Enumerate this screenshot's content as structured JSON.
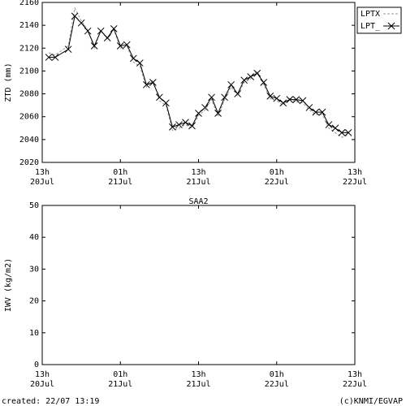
{
  "chart_data": [
    {
      "type": "line",
      "ylabel": "ZTD (mm)",
      "xlim": [
        0,
        48
      ],
      "ylim": [
        2020,
        2160
      ],
      "yticks": [
        2020,
        2040,
        2060,
        2080,
        2100,
        2120,
        2140,
        2160
      ],
      "xticks": [
        {
          "value": 0,
          "label": "13h",
          "date": "20Jul"
        },
        {
          "value": 12,
          "label": "01h",
          "date": "21Jul"
        },
        {
          "value": 24,
          "label": "13h",
          "date": "21Jul"
        },
        {
          "value": 36,
          "label": "01h",
          "date": "22Jul"
        },
        {
          "value": 48,
          "label": "13h",
          "date": "22Jul"
        }
      ],
      "legend": "outside-right",
      "x": [
        1,
        2,
        4,
        5,
        6,
        7,
        8,
        9,
        10,
        11,
        12,
        13,
        14,
        15,
        16,
        17,
        18,
        19,
        20,
        21,
        22,
        23,
        24,
        25,
        26,
        27,
        28,
        29,
        30,
        31,
        32,
        33,
        34,
        35,
        36,
        37,
        38,
        39,
        40,
        41,
        42,
        43,
        44,
        45,
        46,
        47
      ],
      "series": [
        {
          "name": "LPTX",
          "color": "#999999",
          "dash": true,
          "values": [
            2116,
            2114,
            2122,
            2155,
            2144,
            2136,
            2120,
            2136,
            2128,
            2136,
            2120,
            2122,
            2108,
            2104,
            2086,
            2092,
            2074,
            2070,
            2048,
            2050,
            2053,
            2050,
            2061,
            2066,
            2075,
            2060,
            2075,
            2086,
            2078,
            2090,
            2093,
            2100,
            2088,
            2076,
            2074,
            2070,
            2076,
            2073,
            2072,
            2066,
            2062,
            2062,
            2050,
            2046,
            2042,
            2044
          ]
        },
        {
          "name": "LPT_",
          "color": "#000000",
          "marker": "x",
          "values": [
            2112,
            2112,
            2119,
            2148,
            2142,
            2135,
            2122,
            2135,
            2129,
            2137,
            2122,
            2123,
            2111,
            2107,
            2088,
            2090,
            2077,
            2072,
            2051,
            2053,
            2055,
            2052,
            2063,
            2068,
            2077,
            2063,
            2077,
            2088,
            2080,
            2092,
            2095,
            2098,
            2090,
            2078,
            2076,
            2072,
            2075,
            2075,
            2074,
            2068,
            2064,
            2064,
            2053,
            2050,
            2046,
            2046
          ]
        }
      ]
    },
    {
      "type": "line",
      "title": "SAA2",
      "ylabel": "IWV (kg/m2)",
      "xlim": [
        0,
        48
      ],
      "ylim": [
        0,
        50
      ],
      "yticks": [
        0,
        10,
        20,
        30,
        40,
        50
      ],
      "xticks": [
        {
          "value": 0,
          "label": "13h",
          "date": "20Jul"
        },
        {
          "value": 12,
          "label": "01h",
          "date": "21Jul"
        },
        {
          "value": 24,
          "label": "13h",
          "date": "21Jul"
        },
        {
          "value": 36,
          "label": "01h",
          "date": "22Jul"
        },
        {
          "value": 48,
          "label": "13h",
          "date": "22Jul"
        }
      ],
      "x": [],
      "series": []
    }
  ],
  "footer": {
    "created": "created: 22/07 13:19",
    "copyright": "(c)KNMI/EGVAP"
  }
}
